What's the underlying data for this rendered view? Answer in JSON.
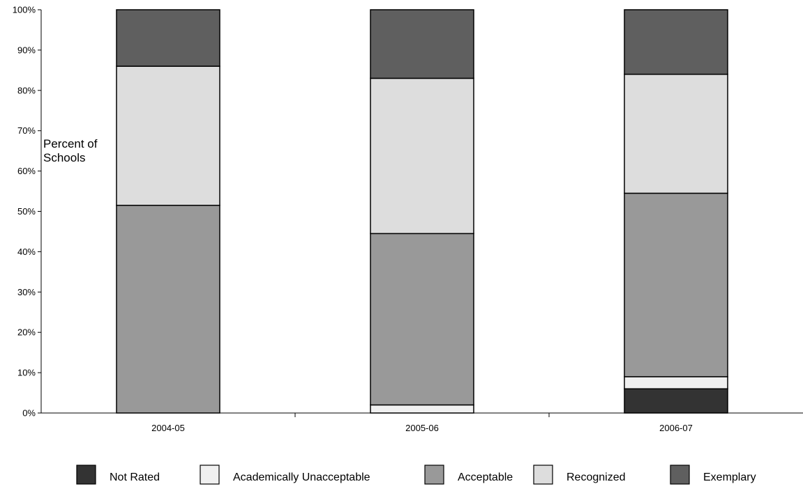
{
  "chart_data": {
    "type": "bar",
    "stacked": true,
    "title": "",
    "categories": [
      "2004-05",
      "2005-06",
      "2006-07"
    ],
    "ylabel_lines": [
      "Percent of",
      "Schools"
    ],
    "ylim": [
      0,
      100
    ],
    "y_ticks": [
      "0%",
      "10%",
      "20%",
      "30%",
      "40%",
      "50%",
      "60%",
      "70%",
      "80%",
      "90%",
      "100%"
    ],
    "grid": false,
    "legend_position": "bottom",
    "series": [
      {
        "name": "Not Rated",
        "color": "#333333",
        "values": [
          0,
          0,
          6
        ]
      },
      {
        "name": "Academically Unacceptable",
        "color": "#f0f0f0",
        "values": [
          0,
          2,
          3
        ]
      },
      {
        "name": "Acceptable",
        "color": "#999999",
        "values": [
          51.5,
          42.5,
          45.5
        ]
      },
      {
        "name": "Recognized",
        "color": "#dddddd",
        "values": [
          34.5,
          38.5,
          29.5
        ]
      },
      {
        "name": "Exemplary",
        "color": "#5f5f5f",
        "values": [
          14,
          17,
          16
        ]
      }
    ]
  }
}
